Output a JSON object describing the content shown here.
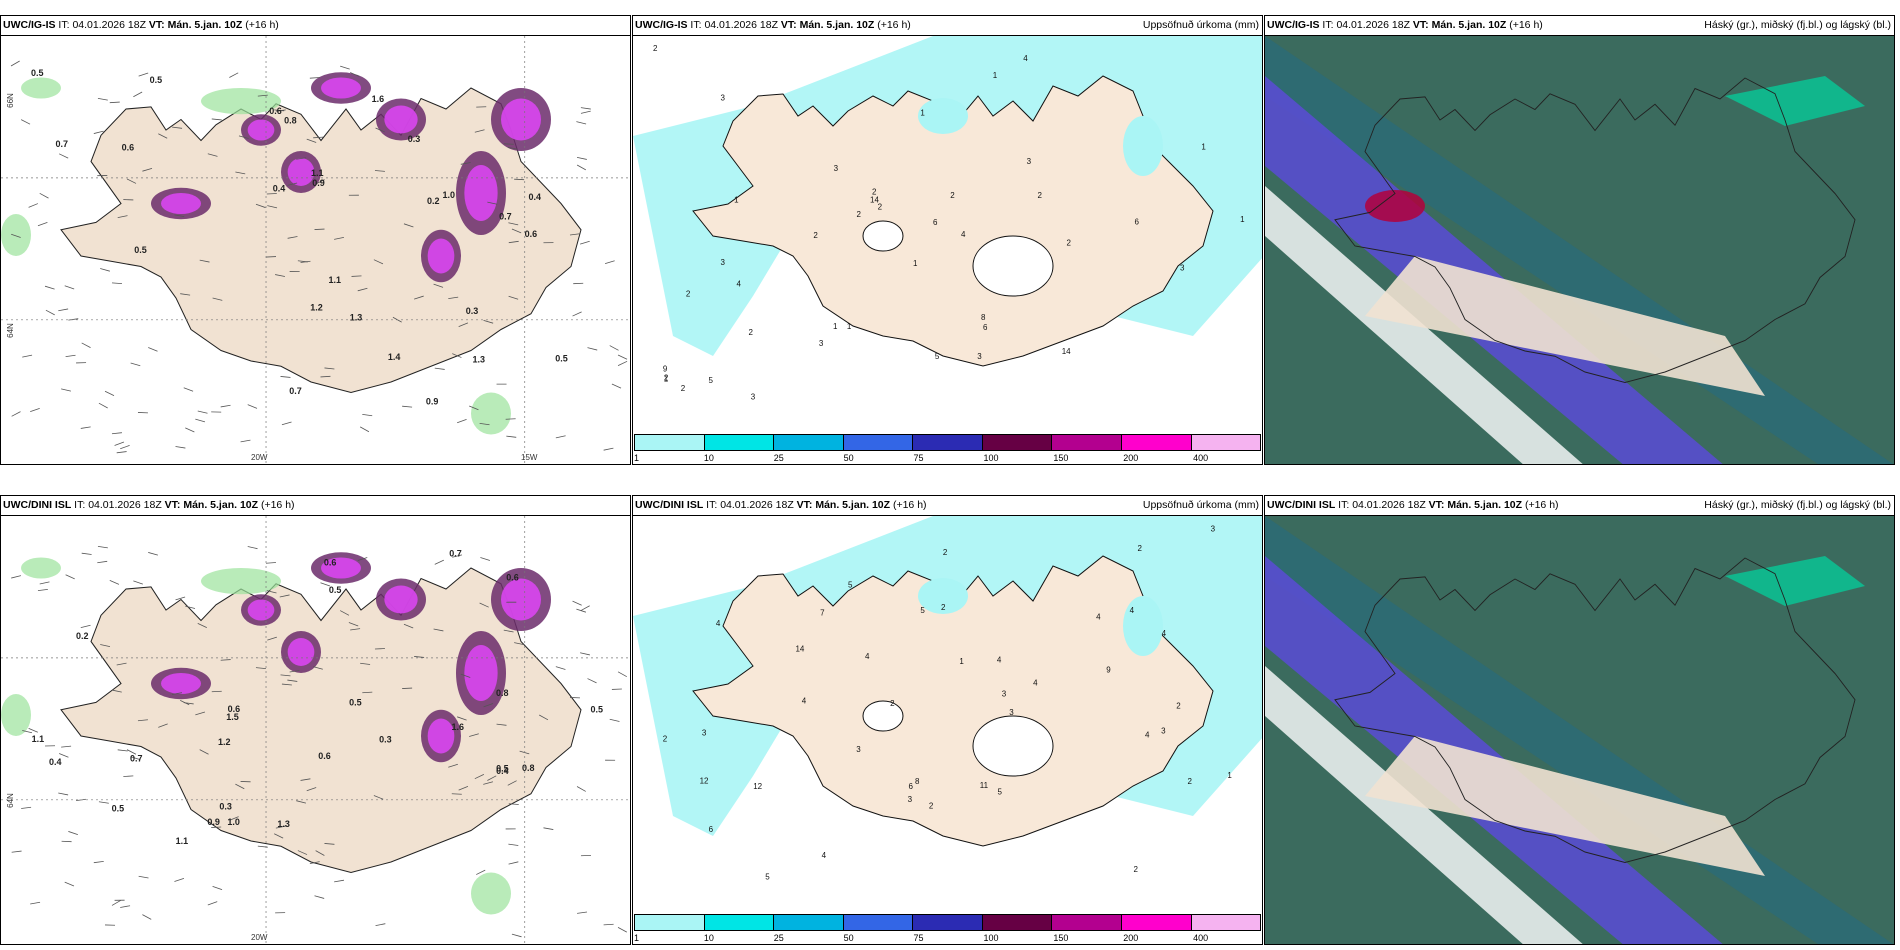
{
  "panels": [
    {
      "model": "UWC/IG-IS",
      "it_label": "IT:",
      "it": "04.01.2026 18Z",
      "vt_label": "VT:",
      "vt": "Mán. 5.jan. 10Z",
      "lead": "(+16 h)",
      "right": ""
    },
    {
      "model": "UWC/IG-IS",
      "it_label": "IT:",
      "it": "04.01.2026 18Z",
      "vt_label": "VT:",
      "vt": "Mán. 5.jan. 10Z",
      "lead": "(+16 h)",
      "right": "Uppsöfnuð úrkoma (mm)"
    },
    {
      "model": "UWC/IG-IS",
      "it_label": "IT:",
      "it": "04.01.2026 18Z",
      "vt_label": "VT:",
      "vt": "Mán. 5.jan. 10Z",
      "lead": "(+16 h)",
      "right": "Háský (gr.), miðský (fj.bl.) og lágský (bl.)"
    },
    {
      "model": "UWC/DINI ISL",
      "it_label": "IT:",
      "it": "04.01.2026 18Z",
      "vt_label": "VT:",
      "vt": "Mán. 5.jan. 10Z",
      "lead": "(+16 h)",
      "right": ""
    },
    {
      "model": "UWC/DINI ISL",
      "it_label": "IT:",
      "it": "04.01.2026 18Z",
      "vt_label": "VT:",
      "vt": "Mán. 5.jan. 10Z",
      "lead": "(+16 h)",
      "right": "Uppsöfnuð úrkoma (mm)"
    },
    {
      "model": "UWC/DINI ISL",
      "it_label": "IT:",
      "it": "04.01.2026 18Z",
      "vt_label": "VT:",
      "vt": "Mán. 5.jan. 10Z",
      "lead": "(+16 h)",
      "right": "Háský (gr.), miðský (fj.bl.) og lágský (bl.)"
    }
  ],
  "coords": {
    "lon_20w": "20W",
    "lon_15w": "15W",
    "lat_66n": "66N",
    "lat_64n": "64N"
  },
  "colorbar": {
    "colors": [
      "#aaf5f5",
      "#00e5e5",
      "#00b3e0",
      "#3366e6",
      "#2b2bb3",
      "#660044",
      "#b3008f",
      "#ff00cc",
      "#f5b3f0"
    ],
    "ticks": [
      "1",
      "10",
      "25",
      "50",
      "75",
      "100",
      "150",
      "200",
      "400"
    ]
  },
  "precip_labels_top": [
    "2",
    "3",
    "6",
    "8",
    "2",
    "1",
    "1",
    "3",
    "6",
    "9",
    "14",
    "14",
    "5",
    "4",
    "2",
    "3",
    "2",
    "1",
    "3",
    "2",
    "1",
    "1",
    "4",
    "3",
    "2",
    "3",
    "2",
    "1",
    "1",
    "2",
    "2",
    "3",
    "5",
    "6",
    "4",
    "2",
    "2",
    "1",
    "1",
    "3",
    "2"
  ],
  "precip_labels_bottom": [
    "2",
    "4",
    "5",
    "4",
    "9",
    "7",
    "11",
    "12",
    "14",
    "5",
    "3",
    "8",
    "4",
    "12",
    "3",
    "2",
    "4",
    "6",
    "4",
    "3",
    "2",
    "4",
    "5",
    "4",
    "3",
    "2",
    "6",
    "4",
    "2",
    "3",
    "2",
    "4",
    "3",
    "2",
    "5",
    "3",
    "1",
    "2",
    "2",
    "4",
    "1"
  ],
  "snow_labels_top": [
    "0.5",
    "0.7",
    "0.3",
    "0.6",
    "0.2",
    "0.4",
    "1.6",
    "0.9",
    "0.8",
    "1.2",
    "0.5",
    "0.3",
    "1.3",
    "0.6",
    "1.1",
    "0.7",
    "0.5",
    "1.0",
    "0.6",
    "0.4",
    "1.4",
    "1.3",
    "1.1",
    "0.7",
    "0.5",
    "0.9"
  ],
  "snow_labels_bottom": [
    "0.5",
    "0.4",
    "0.3",
    "0.5",
    "0.6",
    "0.9",
    "1.2",
    "0.7",
    "0.5",
    "0.2",
    "0.4",
    "1.1",
    "0.8",
    "0.6",
    "0.5",
    "0.6",
    "1.0",
    "0.3",
    "0.7",
    "0.5",
    "1.6",
    "1.5",
    "0.6",
    "0.8",
    "1.1",
    "1.3"
  ]
}
